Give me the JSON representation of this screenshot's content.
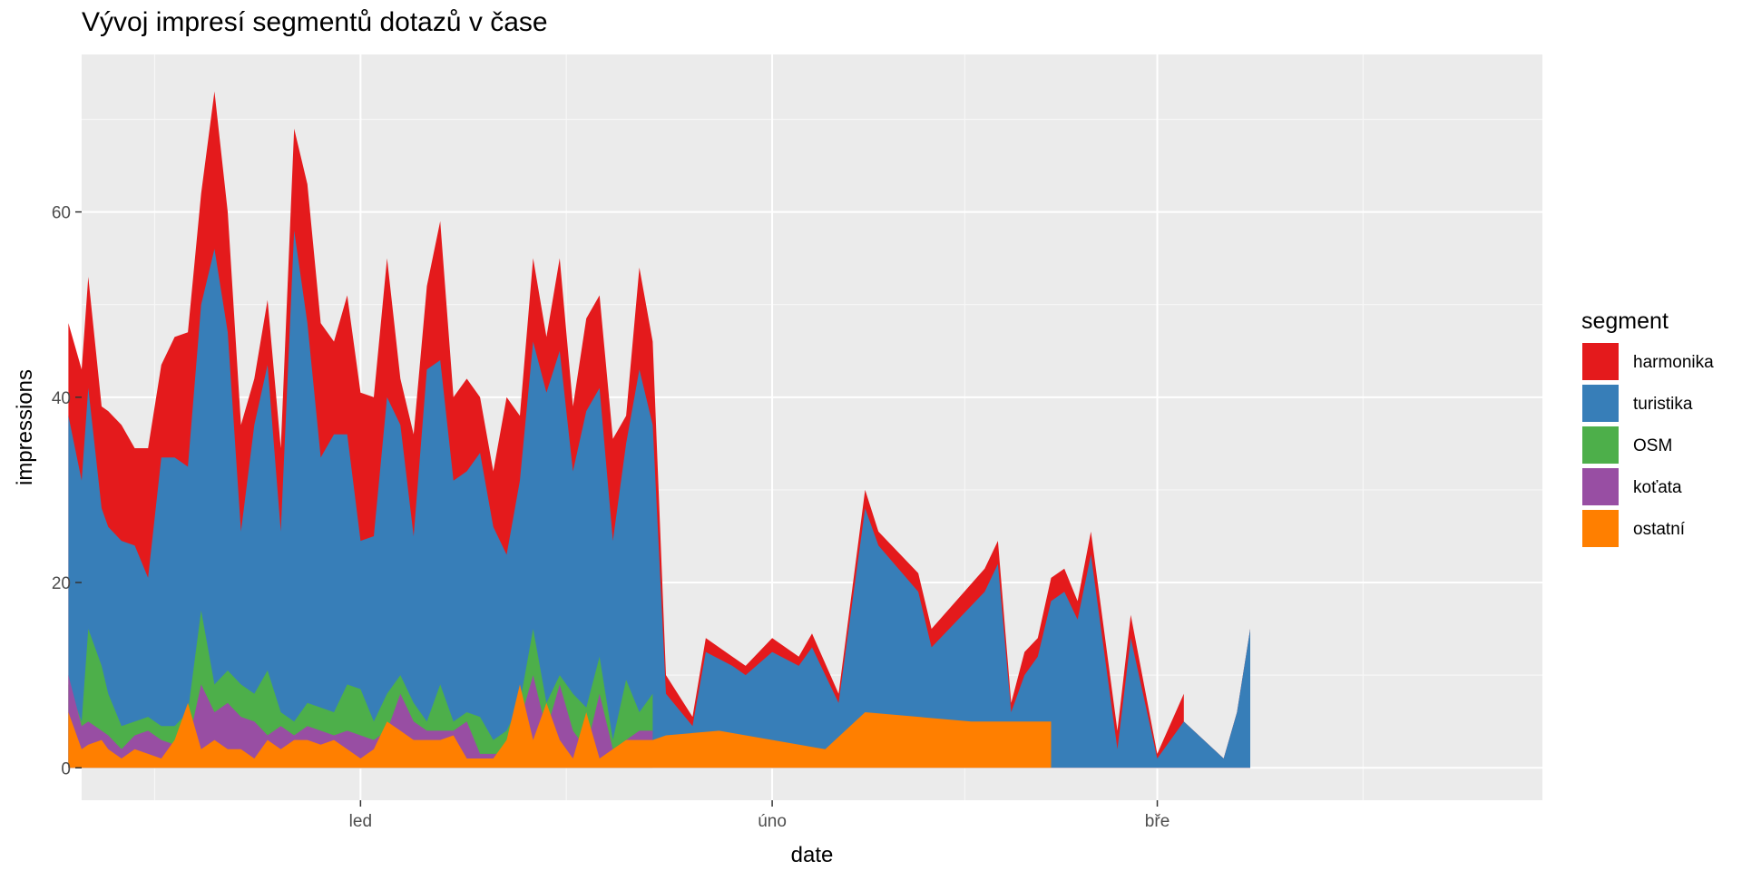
{
  "chart_data": {
    "type": "area",
    "stacked": true,
    "title": "Vývoj impresí segmentů dotazů v čase",
    "xlabel": "date",
    "ylabel": "impressions",
    "ylim": [
      -3.5,
      77
    ],
    "xlim": [
      "2019-12-11",
      "2020-03-30"
    ],
    "grid": true,
    "legend_position": "right",
    "legend_title": "segment",
    "x_ticks": [
      {
        "date": "2020-01-01",
        "label": "led"
      },
      {
        "date": "2020-02-01",
        "label": "úno"
      },
      {
        "date": "2020-03-01",
        "label": "bře"
      }
    ],
    "y_ticks": [
      0,
      20,
      40,
      60
    ],
    "series": [
      {
        "name": "harmonika",
        "color": "#E41A1C",
        "points": [
          [
            9,
            48
          ],
          [
            10,
            43
          ],
          [
            10.5,
            53
          ],
          [
            11.5,
            39
          ],
          [
            12,
            38.5
          ],
          [
            13,
            37
          ],
          [
            14,
            34.5
          ],
          [
            15,
            34.5
          ],
          [
            16,
            43.5
          ],
          [
            17,
            46.5
          ],
          [
            18,
            47
          ],
          [
            19,
            62
          ],
          [
            20,
            73
          ],
          [
            21,
            60
          ],
          [
            22,
            37
          ],
          [
            23,
            42
          ],
          [
            24,
            50.5
          ],
          [
            25,
            34.5
          ],
          [
            26,
            69
          ],
          [
            27,
            63
          ],
          [
            28,
            48
          ],
          [
            29,
            46
          ],
          [
            30,
            51
          ],
          [
            31,
            40.5
          ],
          [
            32,
            40
          ],
          [
            33,
            55
          ],
          [
            34,
            42
          ],
          [
            35,
            36
          ],
          [
            36,
            52
          ],
          [
            37,
            59
          ],
          [
            38,
            40
          ],
          [
            39,
            42
          ],
          [
            40,
            40
          ],
          [
            41,
            32
          ],
          [
            42,
            40
          ],
          [
            43,
            38
          ],
          [
            44,
            55
          ],
          [
            45,
            46.5
          ],
          [
            46,
            55
          ],
          [
            47,
            39
          ],
          [
            48,
            48.5
          ],
          [
            49,
            51
          ],
          [
            50,
            35.5
          ],
          [
            51,
            38
          ],
          [
            52,
            54
          ],
          [
            53,
            46
          ],
          [
            54,
            10
          ],
          [
            56,
            5.5
          ],
          [
            57,
            14
          ],
          [
            59,
            12
          ],
          [
            60,
            11
          ],
          [
            62,
            14
          ],
          [
            64,
            12
          ],
          [
            65,
            14.5
          ],
          [
            67,
            8
          ],
          [
            69,
            30
          ],
          [
            70,
            25.5
          ],
          [
            73,
            21
          ],
          [
            74,
            15
          ],
          [
            78,
            21.5
          ],
          [
            79,
            24.5
          ],
          [
            80,
            7
          ],
          [
            81,
            12.5
          ],
          [
            82,
            14
          ],
          [
            83,
            20.5
          ],
          [
            84,
            21.5
          ],
          [
            85,
            18
          ],
          [
            86,
            25.5
          ],
          [
            88,
            4
          ],
          [
            89,
            16.5
          ],
          [
            91,
            1.5
          ],
          [
            93,
            8
          ],
          [
            93,
            5
          ],
          [
            96,
            1
          ],
          [
            97,
            6
          ],
          [
            98,
            15
          ]
        ]
      },
      {
        "name": "turistika",
        "color": "#377EB8",
        "points": [
          [
            9,
            38
          ],
          [
            10,
            31
          ],
          [
            10.5,
            41
          ],
          [
            11.5,
            28
          ],
          [
            12,
            26
          ],
          [
            13,
            24.5
          ],
          [
            14,
            24
          ],
          [
            15,
            20.5
          ],
          [
            16,
            33.5
          ],
          [
            17,
            33.5
          ],
          [
            18,
            32.5
          ],
          [
            19,
            50
          ],
          [
            20,
            56
          ],
          [
            21,
            47
          ],
          [
            22,
            25.5
          ],
          [
            23,
            37
          ],
          [
            24,
            43.5
          ],
          [
            25,
            25.5
          ],
          [
            26,
            58
          ],
          [
            27,
            48
          ],
          [
            28,
            33.5
          ],
          [
            29,
            36
          ],
          [
            30,
            36
          ],
          [
            31,
            24.5
          ],
          [
            32,
            25
          ],
          [
            33,
            40
          ],
          [
            34,
            37
          ],
          [
            35,
            25
          ],
          [
            36,
            43
          ],
          [
            37,
            44
          ],
          [
            38,
            31
          ],
          [
            39,
            32
          ],
          [
            40,
            34
          ],
          [
            41,
            26
          ],
          [
            42,
            23
          ],
          [
            43,
            31
          ],
          [
            44,
            46
          ],
          [
            45,
            40.5
          ],
          [
            46,
            45
          ],
          [
            47,
            32
          ],
          [
            48,
            38.5
          ],
          [
            49,
            41
          ],
          [
            50,
            24.5
          ],
          [
            51,
            35
          ],
          [
            52,
            43
          ],
          [
            53,
            37
          ],
          [
            54,
            8
          ],
          [
            56,
            4.5
          ],
          [
            57,
            12.5
          ],
          [
            59,
            11
          ],
          [
            60,
            10
          ],
          [
            62,
            12.5
          ],
          [
            64,
            11
          ],
          [
            65,
            13
          ],
          [
            67,
            7
          ],
          [
            69,
            28
          ],
          [
            70,
            24
          ],
          [
            73,
            19
          ],
          [
            74,
            13
          ],
          [
            78,
            19
          ],
          [
            79,
            22
          ],
          [
            80,
            6
          ],
          [
            81,
            10
          ],
          [
            82,
            12
          ],
          [
            83,
            18
          ],
          [
            84,
            19
          ],
          [
            85,
            16
          ],
          [
            86,
            23
          ],
          [
            88,
            2
          ],
          [
            89,
            14
          ],
          [
            91,
            1
          ],
          [
            93,
            5
          ],
          [
            93,
            5
          ],
          [
            96,
            1
          ],
          [
            97,
            6
          ],
          [
            98,
            15
          ]
        ]
      },
      {
        "name": "OSM",
        "color": "#4DAF4A",
        "points": [
          [
            9,
            9
          ],
          [
            10,
            5
          ],
          [
            10.5,
            15
          ],
          [
            11.5,
            11
          ],
          [
            12,
            8
          ],
          [
            13,
            4.5
          ],
          [
            14,
            5
          ],
          [
            15,
            5.5
          ],
          [
            16,
            4.5
          ],
          [
            17,
            4.5
          ],
          [
            18,
            6
          ],
          [
            19,
            17
          ],
          [
            20,
            9
          ],
          [
            21,
            10.5
          ],
          [
            22,
            9
          ],
          [
            23,
            8
          ],
          [
            24,
            10.5
          ],
          [
            25,
            6
          ],
          [
            26,
            5
          ],
          [
            27,
            7
          ],
          [
            28,
            6.5
          ],
          [
            29,
            6
          ],
          [
            30,
            9
          ],
          [
            31,
            8.5
          ],
          [
            32,
            5
          ],
          [
            33,
            8
          ],
          [
            34,
            10
          ],
          [
            35,
            7
          ],
          [
            36,
            5
          ],
          [
            37,
            9
          ],
          [
            38,
            5
          ],
          [
            39,
            6
          ],
          [
            40,
            5.5
          ],
          [
            41,
            3
          ],
          [
            42,
            4
          ],
          [
            43,
            7
          ],
          [
            44,
            15
          ],
          [
            45,
            7
          ],
          [
            46,
            10
          ],
          [
            47,
            8
          ],
          [
            48,
            6.5
          ],
          [
            49,
            12
          ],
          [
            50,
            3
          ],
          [
            51,
            9.5
          ],
          [
            52,
            6
          ],
          [
            53,
            8
          ]
        ]
      },
      {
        "name": "koťata",
        "color": "#984EA3",
        "points": [
          [
            9,
            10
          ],
          [
            10,
            4.5
          ],
          [
            10.5,
            5
          ],
          [
            11.5,
            4
          ],
          [
            12,
            3.5
          ],
          [
            13,
            2
          ],
          [
            14,
            3.5
          ],
          [
            15,
            4
          ],
          [
            16,
            3
          ],
          [
            17,
            2.5
          ],
          [
            18,
            2.5
          ],
          [
            19,
            9
          ],
          [
            20,
            6
          ],
          [
            21,
            7
          ],
          [
            22,
            5.5
          ],
          [
            23,
            5
          ],
          [
            24,
            3.5
          ],
          [
            25,
            4.5
          ],
          [
            26,
            3.5
          ],
          [
            27,
            4.5
          ],
          [
            28,
            4
          ],
          [
            29,
            3.5
          ],
          [
            30,
            4
          ],
          [
            31,
            3.5
          ],
          [
            32,
            3
          ],
          [
            33,
            4
          ],
          [
            34,
            8
          ],
          [
            35,
            5
          ],
          [
            36,
            4
          ],
          [
            37,
            4
          ],
          [
            38,
            4
          ],
          [
            39,
            5
          ],
          [
            40,
            1.5
          ],
          [
            41,
            1.5
          ],
          [
            42,
            1.5
          ],
          [
            43,
            5
          ],
          [
            44,
            10
          ],
          [
            45,
            4
          ],
          [
            46,
            9
          ],
          [
            47,
            4
          ],
          [
            48,
            2
          ],
          [
            49,
            8
          ],
          [
            50,
            2
          ],
          [
            51,
            3
          ],
          [
            52,
            4
          ],
          [
            53,
            4
          ]
        ]
      },
      {
        "name": "ostatní",
        "color": "#FF7F00",
        "points": [
          [
            9,
            6
          ],
          [
            10,
            2
          ],
          [
            10.5,
            2.5
          ],
          [
            11.5,
            3
          ],
          [
            12,
            2
          ],
          [
            13,
            1
          ],
          [
            14,
            2
          ],
          [
            15,
            1.5
          ],
          [
            16,
            1
          ],
          [
            17,
            3
          ],
          [
            18,
            7
          ],
          [
            19,
            2
          ],
          [
            20,
            3
          ],
          [
            21,
            2
          ],
          [
            22,
            2
          ],
          [
            23,
            1
          ],
          [
            24,
            3
          ],
          [
            25,
            2
          ],
          [
            26,
            3
          ],
          [
            27,
            3
          ],
          [
            28,
            2.5
          ],
          [
            29,
            3
          ],
          [
            30,
            2
          ],
          [
            31,
            1
          ],
          [
            32,
            2
          ],
          [
            33,
            5
          ],
          [
            34,
            4
          ],
          [
            35,
            3
          ],
          [
            36,
            3
          ],
          [
            37,
            3
          ],
          [
            38,
            3.5
          ],
          [
            39,
            1
          ],
          [
            40,
            1
          ],
          [
            41,
            1
          ],
          [
            42,
            3
          ],
          [
            43,
            9
          ],
          [
            44,
            3
          ],
          [
            45,
            7
          ],
          [
            46,
            3
          ],
          [
            47,
            1
          ],
          [
            48,
            6
          ],
          [
            49,
            1
          ],
          [
            50,
            2
          ],
          [
            51,
            3
          ],
          [
            52,
            3
          ],
          [
            53,
            3
          ],
          [
            54,
            3.5
          ],
          [
            58,
            4
          ],
          [
            66,
            2
          ],
          [
            69,
            6
          ],
          [
            77,
            5
          ],
          [
            80,
            5
          ],
          [
            83,
            5
          ]
        ]
      }
    ]
  }
}
